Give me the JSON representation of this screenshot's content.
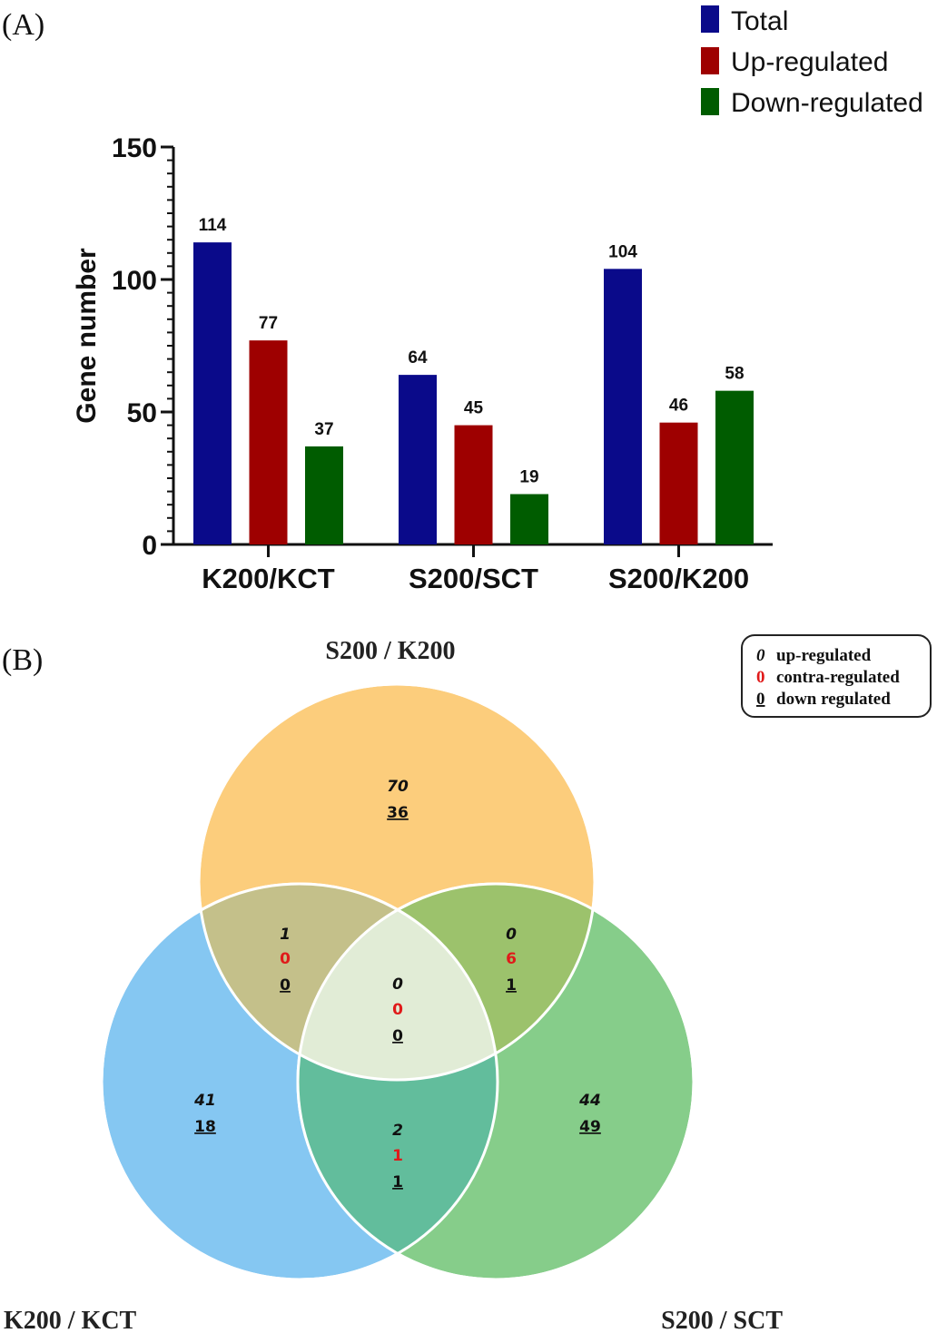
{
  "chart_data": [
    {
      "type": "bar",
      "panel_label": "(A)",
      "categories": [
        "K200/KCT",
        "S200/SCT",
        "S200/K200"
      ],
      "series": [
        {
          "name": "Total",
          "color": "#0a0a8a",
          "values": [
            114,
            64,
            104
          ]
        },
        {
          "name": "Up-regulated",
          "color": "#9e0000",
          "values": [
            77,
            45,
            46
          ]
        },
        {
          "name": "Down-regulated",
          "color": "#005c00",
          "values": [
            37,
            19,
            58
          ]
        }
      ],
      "ylabel": "Gene number",
      "ylim": [
        0,
        150
      ],
      "yticks": [
        "0",
        "50",
        "100",
        "150"
      ],
      "legend_position": "top-right",
      "grid": false
    },
    {
      "type": "venn",
      "panel_label": "(B)",
      "sets": [
        {
          "name": "S200 / K200",
          "color": "#fccd7c"
        },
        {
          "name": "K200 / KCT",
          "color": "#85c7f2"
        },
        {
          "name": "S200 / SCT",
          "color": "#86cd8a"
        }
      ],
      "legend": [
        {
          "symbol": "0",
          "label": "up-regulated",
          "style": "italic",
          "color": "#111111"
        },
        {
          "symbol": "0",
          "label": "contra-regulated",
          "style": "normal",
          "color": "#e01a1a"
        },
        {
          "symbol": "0",
          "label": "down regulated",
          "style": "underline",
          "color": "#111111"
        }
      ],
      "regions": {
        "s200k200_only": {
          "up": "70",
          "down": "36"
        },
        "k200kct_only": {
          "up": "41",
          "down": "18"
        },
        "s200sct_only": {
          "up": "44",
          "down": "49"
        },
        "s200k200_k200kct": {
          "up": "1",
          "contra": "0",
          "down": "0"
        },
        "s200k200_s200sct": {
          "up": "0",
          "contra": "6",
          "down": "1"
        },
        "k200kct_s200sct": {
          "up": "2",
          "contra": "1",
          "down": "1"
        },
        "all_three": {
          "up": "0",
          "contra": "0",
          "down": "0"
        }
      }
    }
  ]
}
